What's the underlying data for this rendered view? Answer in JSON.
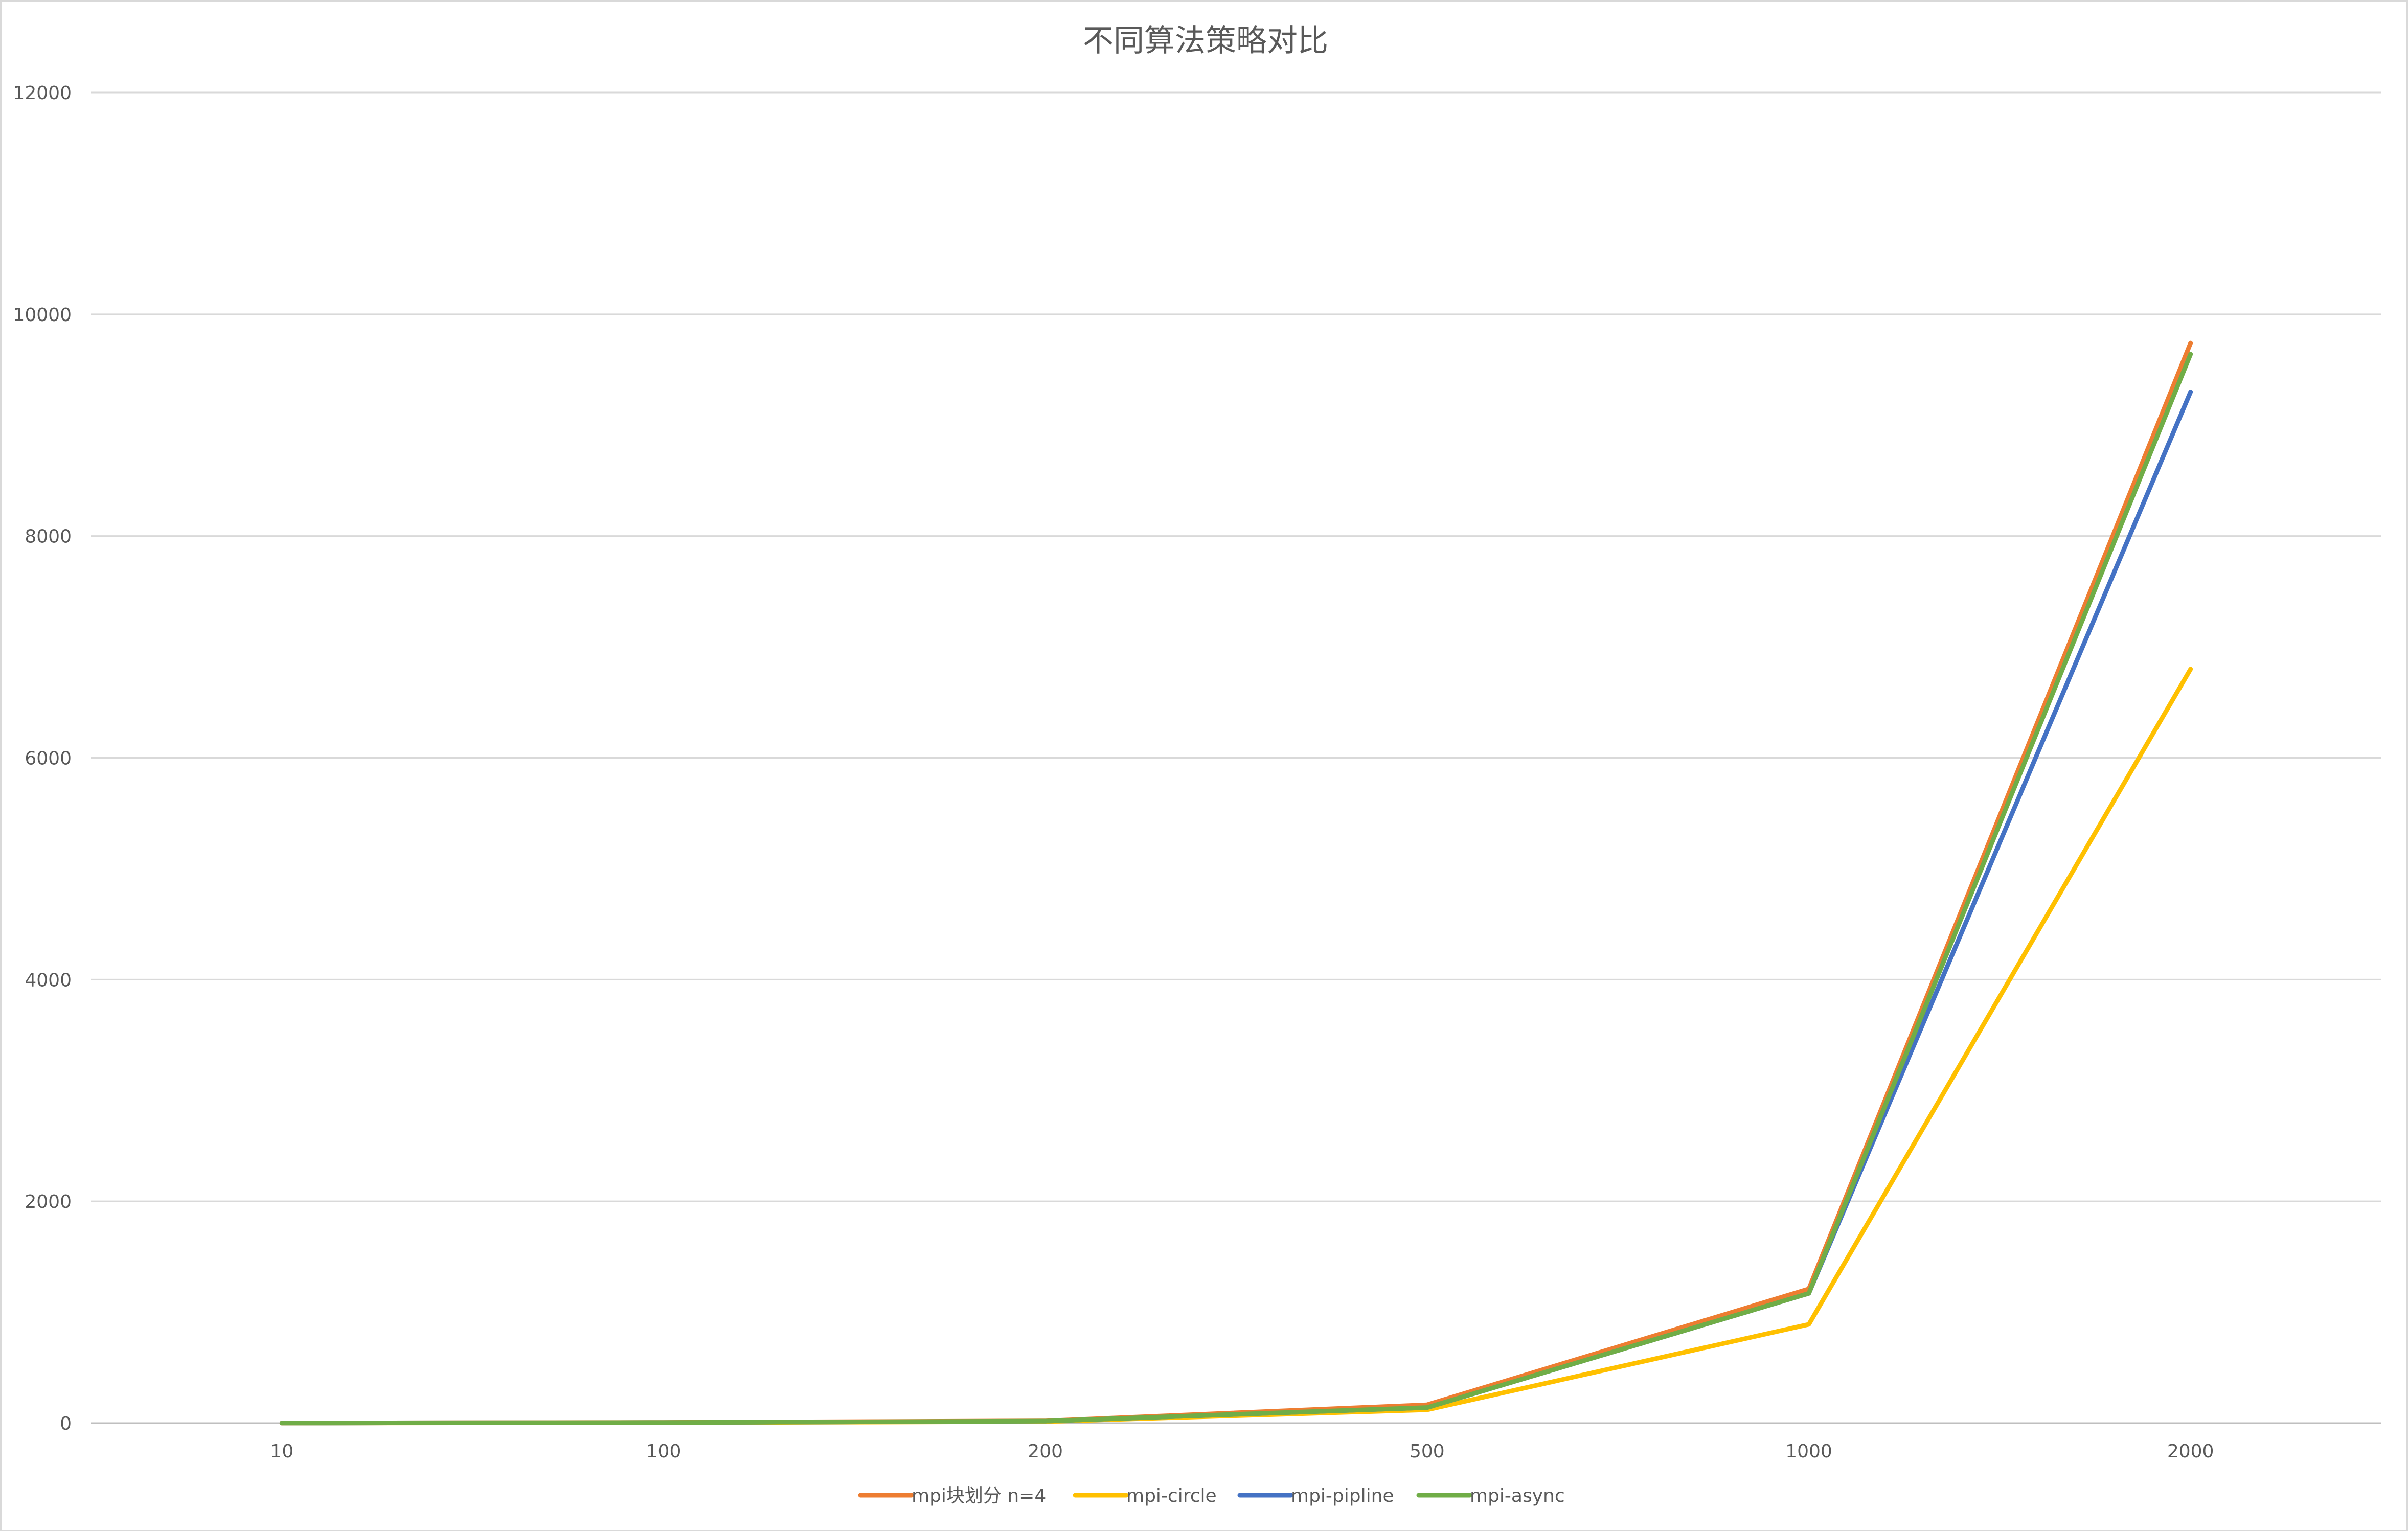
{
  "chart_data": {
    "type": "line",
    "title": "不同算法策略对比",
    "xlabel": "",
    "ylabel": "",
    "categories": [
      "10",
      "100",
      "200",
      "500",
      "1000",
      "2000"
    ],
    "ylim": [
      0,
      12000
    ],
    "yticks": [
      0,
      2000,
      4000,
      6000,
      8000,
      10000,
      12000
    ],
    "grid": true,
    "legend_position": "bottom",
    "series": [
      {
        "name": "mpi块划分 n=4",
        "color": "#ED7D31",
        "values": [
          1,
          6,
          20,
          165,
          1210,
          9740
        ]
      },
      {
        "name": "mpi-circle",
        "color": "#FFC000",
        "values": [
          0.5,
          4,
          14,
          120,
          890,
          6800
        ]
      },
      {
        "name": "mpi-pipline",
        "color": "#4472C4",
        "values": [
          1,
          5,
          18,
          140,
          1170,
          9300
        ]
      },
      {
        "name": "mpi-async",
        "color": "#70AD47",
        "values": [
          1,
          5,
          18,
          140,
          1170,
          9640
        ]
      }
    ]
  }
}
